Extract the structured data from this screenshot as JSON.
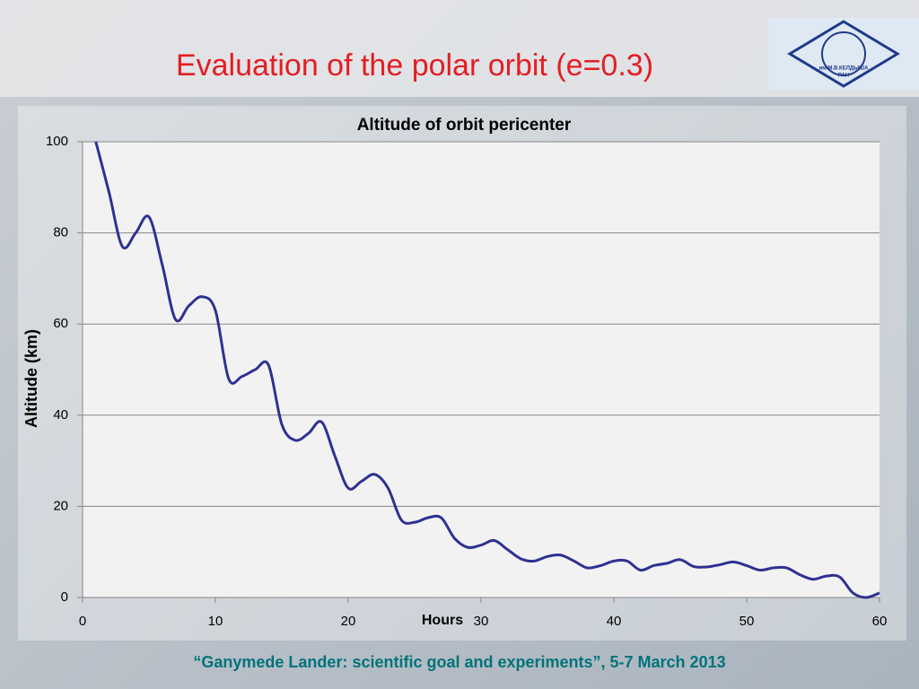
{
  "header": {
    "title": "Evaluation of the polar orbit",
    "title_suffix": "(e=0.3)",
    "logo": [
      "им.М.В.КЕЛДЫША",
      "РАН"
    ]
  },
  "chart_data": {
    "type": "line",
    "title": "Altitude of orbit pericenter",
    "x_label": "Hours",
    "y_label": "Altitude (km)",
    "x": [
      1,
      2,
      3,
      4,
      5,
      6,
      7,
      8,
      9,
      10,
      11,
      12,
      13,
      14,
      15,
      16,
      17,
      18,
      19,
      20,
      21,
      22,
      23,
      24,
      25,
      26,
      27,
      28,
      29,
      30,
      31,
      32,
      33,
      34,
      35,
      36,
      37,
      38,
      39,
      40,
      41,
      42,
      43,
      44,
      45,
      46,
      47,
      48,
      49,
      50,
      51,
      52,
      53,
      54,
      55,
      56,
      57,
      58,
      59,
      60
    ],
    "series": [
      {
        "name": "Altitude",
        "color": "#2e3192",
        "values": [
          100,
          88.8,
          77,
          80,
          83.5,
          73,
          61,
          64,
          66,
          63,
          48,
          48.5,
          50,
          51,
          38,
          34.5,
          36,
          38.5,
          31,
          24,
          25.5,
          27,
          24,
          17,
          16.5,
          17.5,
          17.5,
          13,
          11,
          11.5,
          12.5,
          10.5,
          8.5,
          8,
          9,
          9.3,
          8,
          6.5,
          7,
          8,
          8,
          6,
          7,
          7.5,
          8.3,
          6.8,
          6.7,
          7.2,
          7.8,
          7,
          6,
          6.5,
          6.5,
          5,
          4,
          4.7,
          4.5,
          1,
          0,
          1
        ]
      }
    ],
    "xlim": [
      0,
      60
    ],
    "xticks": [
      0,
      10,
      20,
      30,
      40,
      50,
      60
    ],
    "ylim": [
      0,
      100
    ],
    "yticks": [
      0,
      20,
      40,
      60,
      80,
      100
    ],
    "grid": true
  },
  "footer": "“Ganymede Lander: scientific goal and experiments”, 5-7 March 2013"
}
